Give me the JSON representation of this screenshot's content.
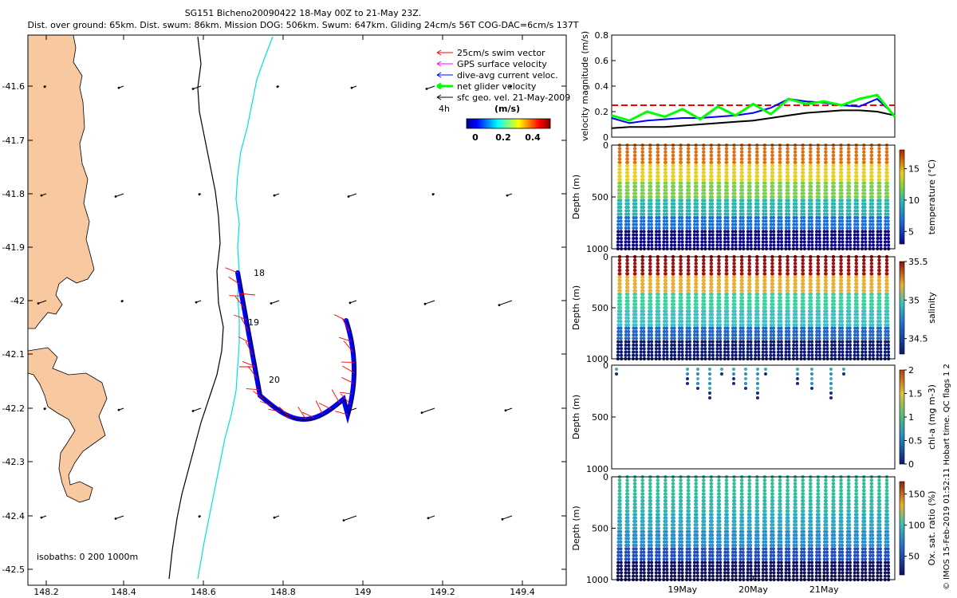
{
  "header": {
    "line1": "SG151 Bicheno20090422 18-May 00Z to 21-May 23Z.",
    "line2": "Dist. over ground: 65km. Dist. swum: 86km. Mission DOG: 506km. Swum: 647km. Gliding 24cm/s 56T COG-DAC=6cm/s 137T"
  },
  "map": {
    "xticks": [
      "148.2",
      "148.4",
      "148.6",
      "148.8",
      "149",
      "149.2",
      "149.4"
    ],
    "yticks": [
      "-41.6",
      "-41.7",
      "-41.8",
      "-41.9",
      "-42",
      "-42.1",
      "-42.2",
      "-42.3",
      "-42.4",
      "-42.5"
    ],
    "isobaths_label": "isobaths: 0   200   1000m",
    "day_labels": [
      "18",
      "19",
      "20"
    ],
    "legend": {
      "items": [
        {
          "label": "25cm/s swim vector",
          "color": "#ff0000"
        },
        {
          "label": "GPS surface velocity",
          "color": "#ff00ff"
        },
        {
          "label": "dive-avg current veloc.",
          "color": "#0000ff"
        },
        {
          "label": "net glider velocity",
          "color": "#00ff00"
        },
        {
          "label": "sfc geo. vel. 21-May-2009",
          "color": "#000000"
        }
      ],
      "time_label": "4h",
      "colorbar_unit": "(m/s)",
      "colorbar_ticks": [
        "0",
        "0.2",
        "0.4"
      ]
    },
    "colors": {
      "land": "#f8c8a0",
      "isobath_200": "#000000",
      "isobath_1000": "#00e0e0"
    }
  },
  "side_label": "© IMOS 15-Feb-2019 01:52:11 Hobart time. QC flags 1  2",
  "chart_data": [
    {
      "type": "line",
      "ylabel": "velocity magnitude (m/s)",
      "ylim": [
        0,
        0.8
      ],
      "yticks": [
        "0",
        "0.2",
        "0.4",
        "0.6",
        "0.8"
      ],
      "x_days": [
        0,
        0.25,
        0.5,
        0.75,
        1.0,
        1.25,
        1.5,
        1.75,
        2.0,
        2.25,
        2.5,
        2.75,
        3.0,
        3.25,
        3.5,
        3.75,
        4.0
      ],
      "series": [
        {
          "color": "#ff0000",
          "style": "dashed",
          "values": [
            0.25,
            0.25,
            0.25,
            0.25,
            0.25,
            0.25,
            0.25,
            0.25,
            0.25,
            0.25,
            0.25,
            0.25,
            0.25,
            0.25,
            0.25,
            0.25,
            0.25
          ]
        },
        {
          "color": "#0000ff",
          "values": [
            0.15,
            0.11,
            0.13,
            0.14,
            0.15,
            0.15,
            0.16,
            0.17,
            0.19,
            0.23,
            0.3,
            0.28,
            0.27,
            0.25,
            0.24,
            0.3,
            0.17
          ]
        },
        {
          "color": "#000000",
          "values": [
            0.07,
            0.08,
            0.08,
            0.08,
            0.09,
            0.1,
            0.11,
            0.12,
            0.13,
            0.15,
            0.17,
            0.19,
            0.2,
            0.21,
            0.21,
            0.2,
            0.17
          ]
        },
        {
          "color": "#00ff00",
          "values": [
            0.17,
            0.13,
            0.2,
            0.16,
            0.22,
            0.14,
            0.24,
            0.17,
            0.26,
            0.18,
            0.3,
            0.26,
            0.28,
            0.25,
            0.3,
            0.33,
            0.16
          ]
        }
      ]
    },
    {
      "type": "scatter",
      "ylabel": "Depth (m)",
      "ylim": [
        1000,
        0
      ],
      "yticks": [
        "0",
        "500",
        "1000"
      ],
      "colorbar_label": "temperature (°C)",
      "colorbar_ticks": [
        "5",
        "10",
        "15"
      ],
      "clim": [
        3,
        18
      ],
      "n_dives": 36
    },
    {
      "type": "scatter",
      "ylabel": "Depth (m)",
      "ylim": [
        1000,
        0
      ],
      "yticks": [
        "0",
        "500",
        "1000"
      ],
      "colorbar_label": "salinity",
      "colorbar_ticks": [
        "34.5",
        "35",
        "35.5"
      ],
      "clim": [
        34.3,
        35.5
      ],
      "n_dives": 36
    },
    {
      "type": "scatter",
      "ylabel": "Depth (m)",
      "ylim": [
        1000,
        0
      ],
      "yticks": [
        "0",
        "500",
        "1000"
      ],
      "colorbar_label": "chl-a (mg m-3)",
      "colorbar_ticks": [
        "0",
        "0.5",
        "1",
        "1.5",
        "2"
      ],
      "clim": [
        0,
        2
      ]
    },
    {
      "type": "scatter",
      "ylabel": "Depth (m)",
      "ylim": [
        1000,
        0
      ],
      "yticks": [
        "0",
        "500",
        "1000"
      ],
      "xticks": [
        "19May",
        "20May",
        "21May"
      ],
      "colorbar_label": "Ox. sat. ratio (%)",
      "colorbar_ticks": [
        "50",
        "100",
        "150"
      ],
      "clim": [
        20,
        170
      ],
      "n_dives": 36
    }
  ]
}
